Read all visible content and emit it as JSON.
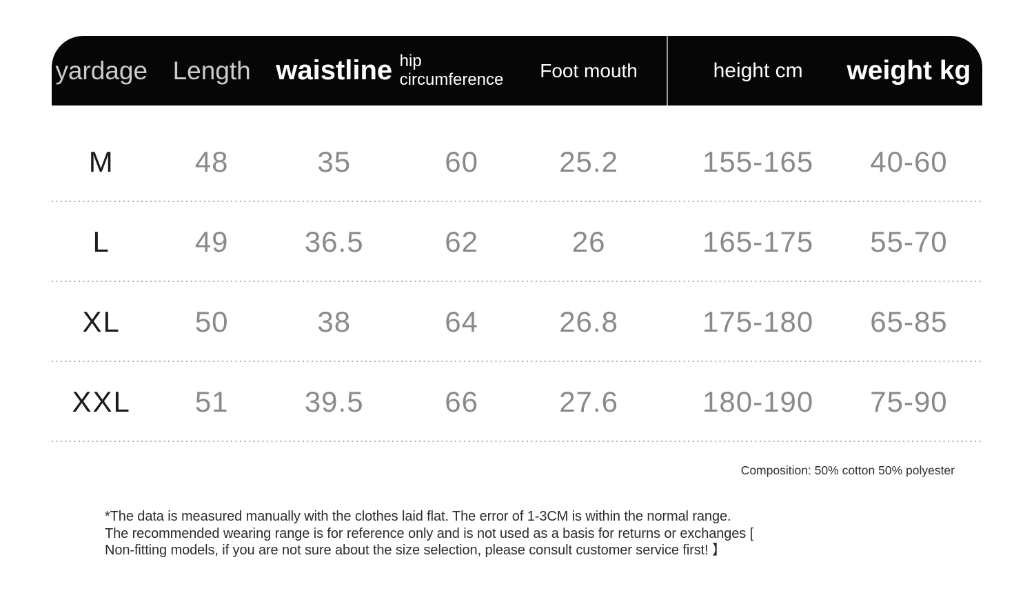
{
  "colors": {
    "background": "#ffffff",
    "header_bg": "#060606",
    "header_text": "#ffffff",
    "header_text_muted": "#cccccc",
    "size_label_text": "#1a1a1a",
    "value_text": "#8a8a8a",
    "row_divider_dotted": "#a9a9a9",
    "header_column_divider": "#a0a0a0",
    "note_text": "#2c2c30"
  },
  "chart_data": {
    "type": "table",
    "title": "",
    "columns": [
      "yardage",
      "Length",
      "waistline",
      "hip circumference",
      "Foot mouth",
      "height cm",
      "weight kg"
    ],
    "rows": [
      [
        "M",
        "48",
        "35",
        "60",
        "25.2",
        "155-165",
        "40-60"
      ],
      [
        "L",
        "49",
        "36.5",
        "62",
        "26",
        "165-175",
        "55-70"
      ],
      [
        "XL",
        "50",
        "38",
        "64",
        "26.8",
        "175-180",
        "65-85"
      ],
      [
        "XXL",
        "51",
        "39.5",
        "66",
        "27.6",
        "180-190",
        "75-90"
      ]
    ],
    "layout_hints": {
      "header_style": "black rounded pill bar, white/grey text",
      "divider_between_columns": "vertical line between Foot mouth and height cm",
      "row_separators": "fine grey dotted lines",
      "grid": "off"
    }
  },
  "footer": {
    "composition": "Composition: 50% cotton 50% polyester",
    "disclaimer_lines": [
      "*The data is measured manually with the clothes laid flat. The error of 1-3CM is within the normal range.",
      "The recommended wearing range is for reference only and is not used as a basis for returns or exchanges [",
      "Non-fitting models, if you are not sure about the size selection, please consult customer service first! 】"
    ]
  }
}
